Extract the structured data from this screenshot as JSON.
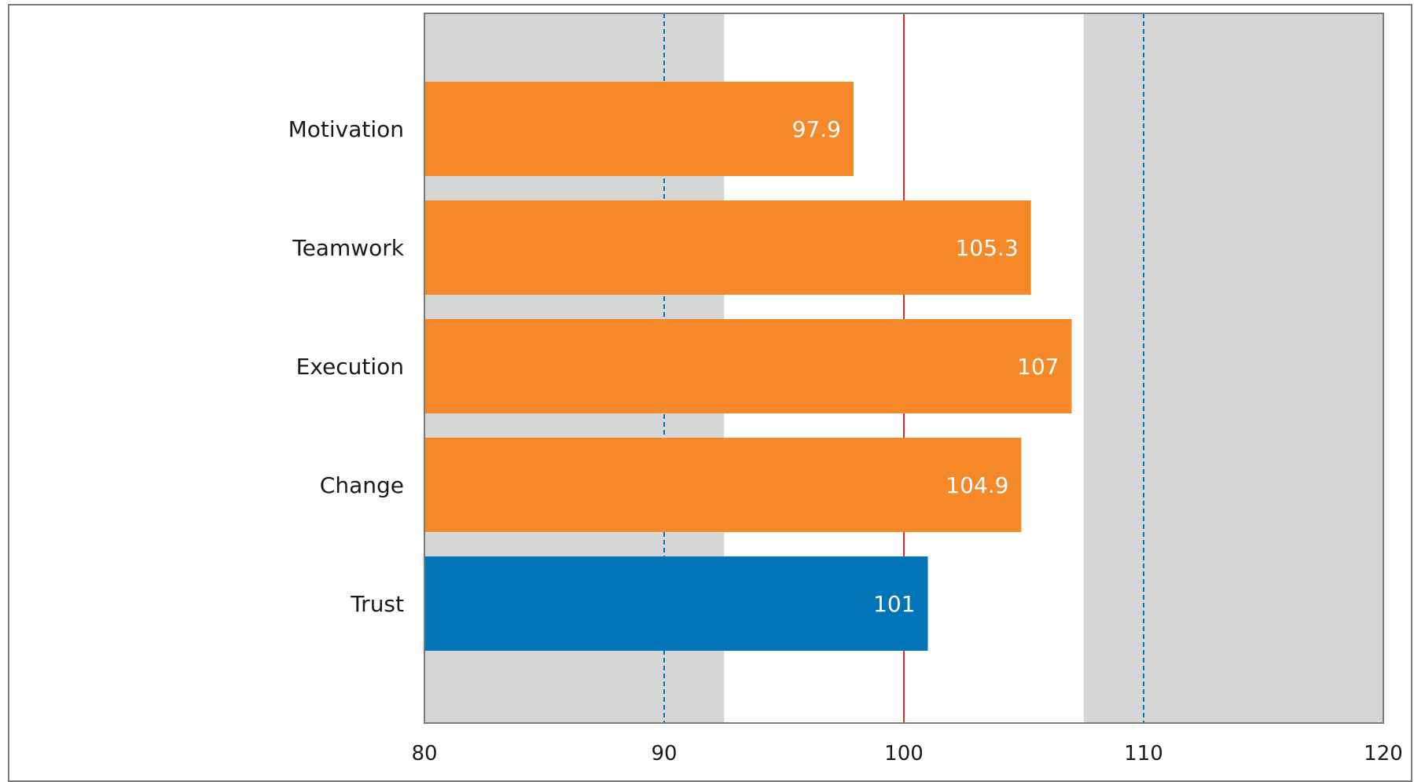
{
  "chart_data": {
    "type": "bar",
    "orientation": "horizontal",
    "categories": [
      "Motivation",
      "Teamwork",
      "Execution",
      "Change",
      "Trust"
    ],
    "values": [
      97.9,
      105.3,
      107,
      104.9,
      101
    ],
    "value_labels": [
      "97.9",
      "105.3",
      "107",
      "104.9",
      "101"
    ],
    "bar_colors": [
      "#f5892a",
      "#f5892a",
      "#f5892a",
      "#f5892a",
      "#0274b8"
    ],
    "xlim": [
      80,
      120
    ],
    "xticks": [
      80,
      90,
      100,
      110,
      120
    ],
    "xtick_labels": [
      "80",
      "90",
      "100",
      "110",
      "120"
    ],
    "title": "",
    "xlabel": "",
    "ylabel": "",
    "grid": false,
    "legend": "none",
    "shaded_bands": [
      {
        "from": 80,
        "to": 92.5,
        "color": "#d6d6d6"
      },
      {
        "from": 107.5,
        "to": 120,
        "color": "#d6d6d6"
      }
    ],
    "reference_lines": [
      {
        "value": 90,
        "style": "dashed",
        "color": "#0274b8"
      },
      {
        "value": 100,
        "style": "solid",
        "color": "#e8262b"
      },
      {
        "value": 110,
        "style": "dashed",
        "color": "#0274b8"
      }
    ]
  }
}
